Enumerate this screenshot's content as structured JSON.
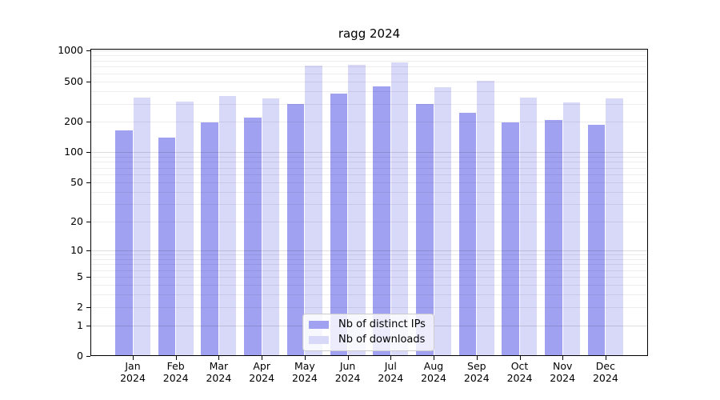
{
  "title": "ragg 2024",
  "chart_data": {
    "type": "bar",
    "title": "ragg 2024",
    "y_scale": "log1p",
    "grid": "horizontal, minor log lines, drawn over bars",
    "legend_position": "inside bottom-center",
    "categories": [
      "Jan 2024",
      "Feb 2024",
      "Mar 2024",
      "Apr 2024",
      "May 2024",
      "Jun 2024",
      "Jul 2024",
      "Aug 2024",
      "Sep 2024",
      "Oct 2024",
      "Nov 2024",
      "Dec 2024"
    ],
    "series": [
      {
        "name": "Nb of distinct IPs",
        "color": "#a1a1f1",
        "values": [
          165,
          140,
          197,
          220,
          299,
          379,
          446,
          299,
          246,
          198,
          206,
          187
        ]
      },
      {
        "name": "Nb of downloads",
        "color": "#d8d8f8",
        "values": [
          345,
          315,
          358,
          340,
          713,
          727,
          767,
          435,
          503,
          345,
          312,
          342
        ]
      }
    ],
    "y_ticks": [
      0,
      1,
      2,
      5,
      10,
      20,
      50,
      100,
      200,
      500,
      1000
    ],
    "ylim": [
      0,
      1043
    ],
    "xlabel": "",
    "ylabel": ""
  },
  "legend": {
    "items": [
      {
        "label": "Nb of distinct IPs",
        "color": "#a1a1f1"
      },
      {
        "label": "Nb of downloads",
        "color": "#d8d8f8"
      }
    ]
  },
  "colors": {
    "background": "#ffffff",
    "axis": "#000000",
    "grid_minor": "rgba(0,0,0,0.07)",
    "grid_major": "rgba(0,0,0,0.13)",
    "legend_background": "rgba(255,255,255,0.8)",
    "legend_border": "#cccccc"
  }
}
